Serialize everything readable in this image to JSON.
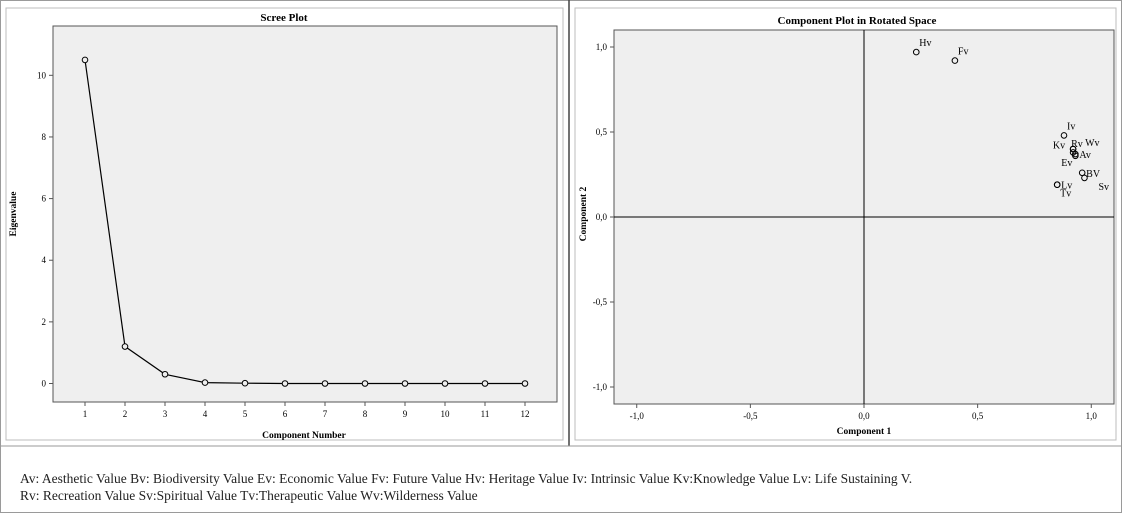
{
  "chart_data": [
    {
      "type": "line",
      "title": "Scree Plot",
      "xlabel": "Component Number",
      "ylabel": "Eigenvalue",
      "x": [
        1,
        2,
        3,
        4,
        5,
        6,
        7,
        8,
        9,
        10,
        11,
        12
      ],
      "y": [
        10.5,
        1.2,
        0.3,
        0.03,
        0.01,
        0.0,
        0.0,
        0.0,
        0.0,
        0.0,
        0.0,
        0.0
      ],
      "xticks": [
        "1",
        "2",
        "3",
        "4",
        "5",
        "6",
        "7",
        "8",
        "9",
        "10",
        "11",
        "12"
      ],
      "yticks": [
        "0",
        "2",
        "4",
        "6",
        "8",
        "10"
      ],
      "ytick_values": [
        0,
        2,
        4,
        6,
        8,
        10
      ],
      "xlim": [
        0.2,
        12.8
      ],
      "ylim": [
        -0.6,
        11.6
      ],
      "grid": false
    },
    {
      "type": "scatter",
      "title": "Component Plot in Rotated Space",
      "xlabel": "Component 1",
      "ylabel": "Component 2",
      "xlim": [
        -1.1,
        1.1
      ],
      "ylim": [
        -1.1,
        1.1
      ],
      "xticks": [
        "-1,0",
        "-0,5",
        "0,0",
        "0,5",
        "1,0"
      ],
      "xtick_values": [
        -1.0,
        -0.5,
        0.0,
        0.5,
        1.0
      ],
      "yticks": [
        "-1,0",
        "-0,5",
        "0,0",
        "0,5",
        "1,0"
      ],
      "ytick_values": [
        -1.0,
        -0.5,
        0.0,
        0.5,
        1.0
      ],
      "reference_lines": [
        0,
        0
      ],
      "points": [
        {
          "label": "Hv",
          "x": 0.23,
          "y": 0.97,
          "label_anchor": "above-right"
        },
        {
          "label": "Fv",
          "x": 0.4,
          "y": 0.92,
          "label_anchor": "above-right"
        },
        {
          "label": "Iv",
          "x": 0.88,
          "y": 0.48,
          "label_anchor": "above-right"
        },
        {
          "label": "Rv",
          "x": 0.92,
          "y": 0.4,
          "label_anchor": "above-left"
        },
        {
          "label": "Wv",
          "x": 0.92,
          "y": 0.4,
          "label_anchor": "right-far"
        },
        {
          "label": "Kv",
          "x": 0.92,
          "y": 0.38,
          "label_anchor": "left-far"
        },
        {
          "label": "Ev",
          "x": 0.93,
          "y": 0.36,
          "label_anchor": "below-left"
        },
        {
          "label": "Av",
          "x": 0.93,
          "y": 0.37,
          "label_anchor": "right"
        },
        {
          "label": "BV",
          "x": 0.96,
          "y": 0.26,
          "label_anchor": "right"
        },
        {
          "label": "Lv",
          "x": 0.85,
          "y": 0.19,
          "label_anchor": "right"
        },
        {
          "label": "Tv",
          "x": 0.85,
          "y": 0.19,
          "label_anchor": "below"
        },
        {
          "label": "Sv",
          "x": 0.97,
          "y": 0.23,
          "label_anchor": "below-right"
        }
      ],
      "grid": false
    }
  ],
  "legend_text": {
    "line1": "Av: Aesthetic Value  Bv: Biodiversity  Value  Ev: Economic Value  Fv: Future Value  Hv: Heritage Value  Iv: Intrinsic Value  Kv:Knowledge  Value   Lv: Life Sustaining V.",
    "line2": "Rv: Recreation Value  Sv:Spiritual  Value  Tv:Therapeutic Value  Wv:Wilderness Value"
  },
  "colors": {
    "plot_background": "#efefef",
    "line": "#000000",
    "axis": "#555555"
  }
}
